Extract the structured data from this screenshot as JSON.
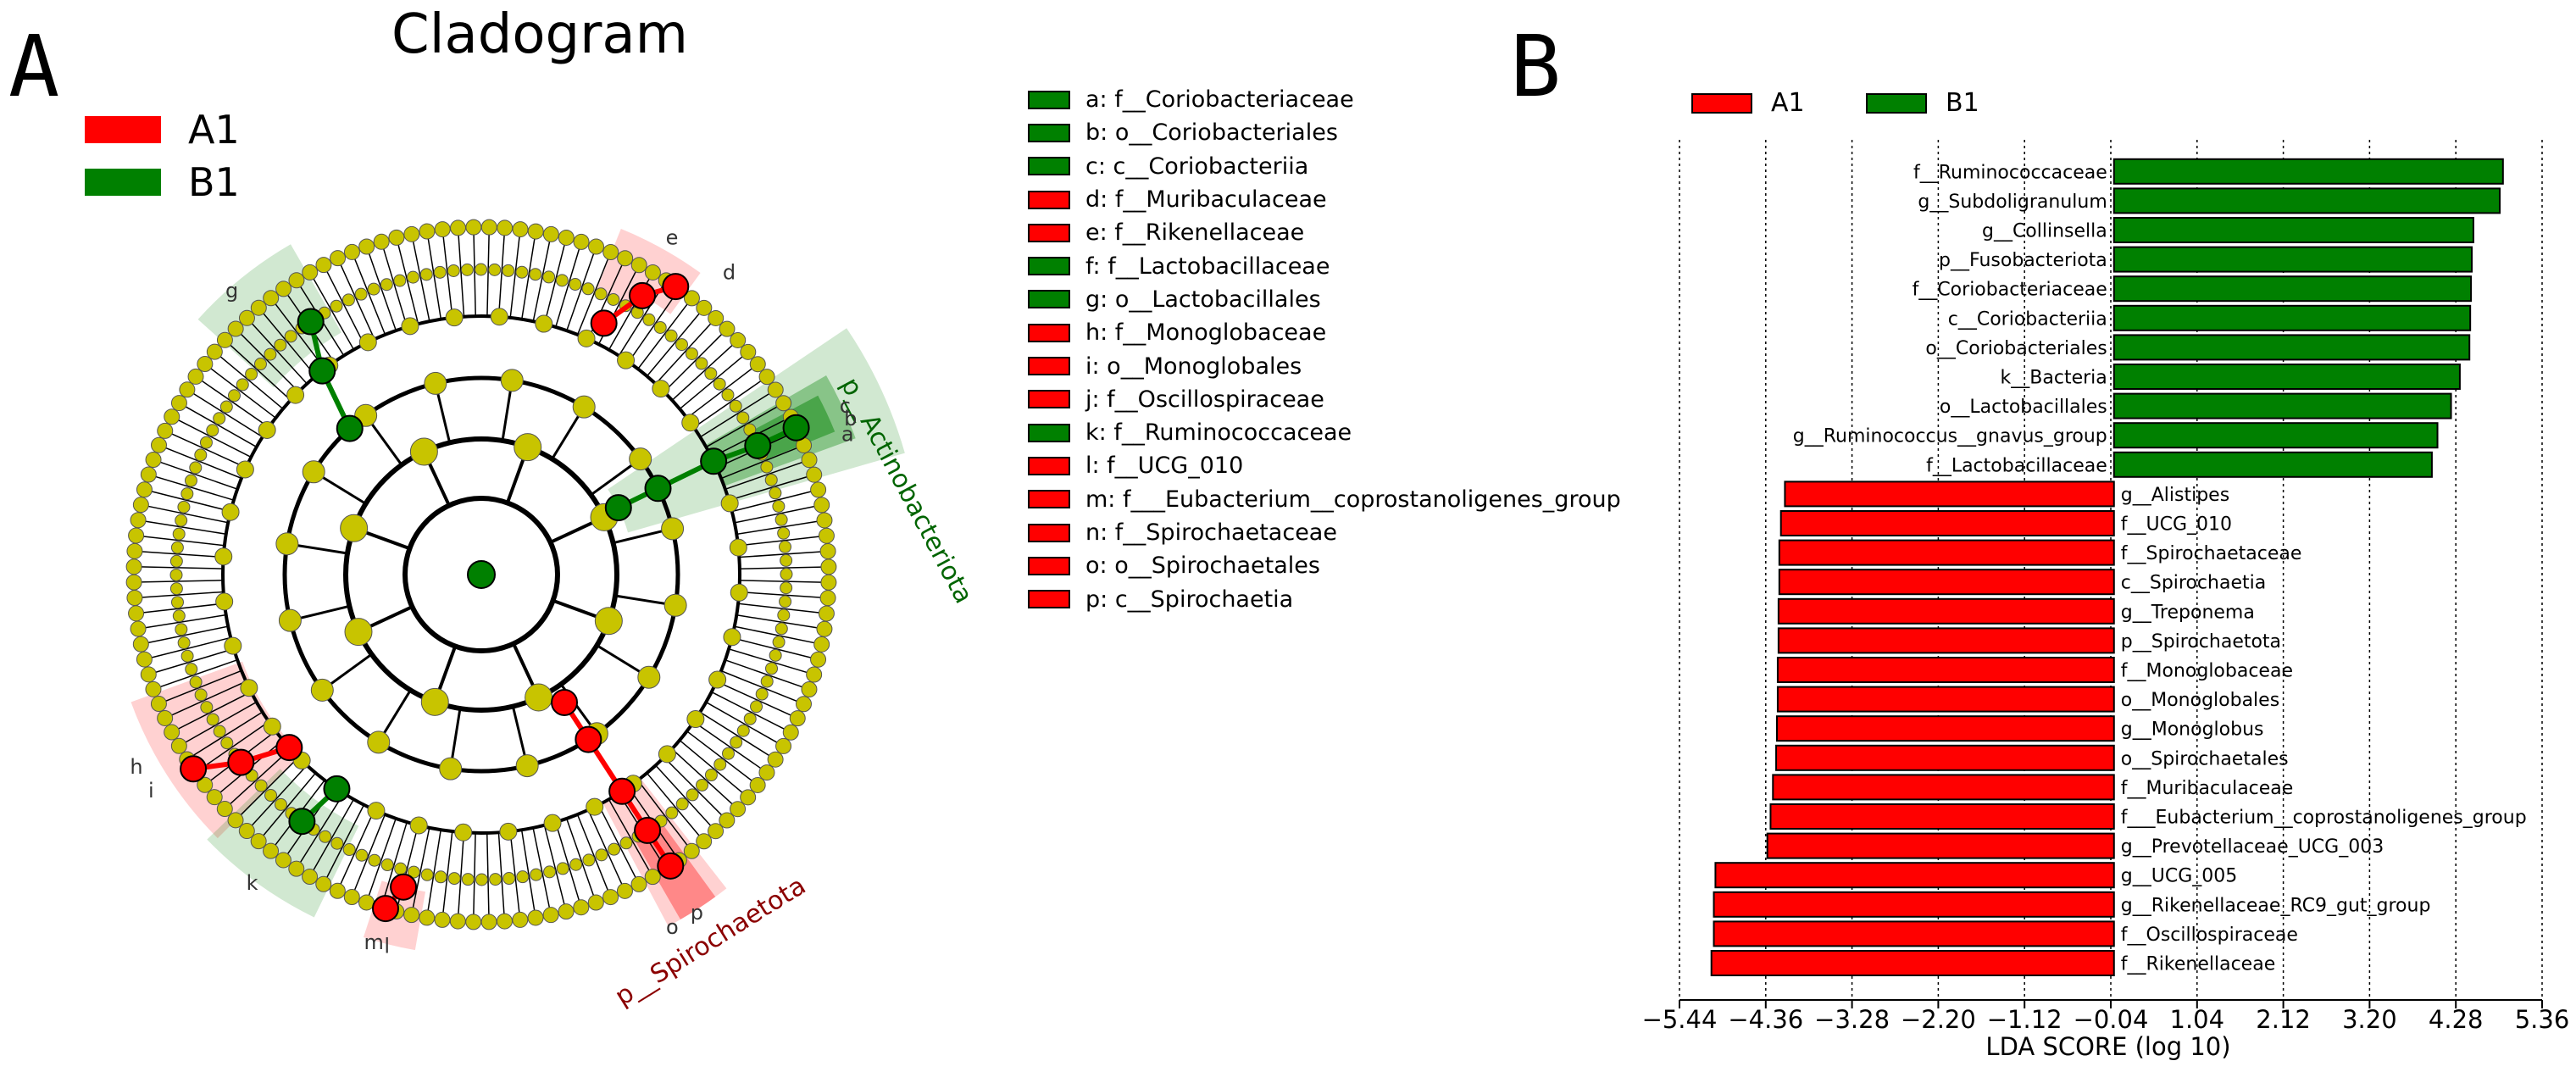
{
  "panel_a": {
    "letter": "A",
    "title": "Cladogram",
    "groups": [
      {
        "name": "A1",
        "color": "#ff0000"
      },
      {
        "name": "B1",
        "color": "#008000"
      }
    ],
    "node_color": "#c8c400",
    "highlight_labels": {
      "actino": "p__Actinobacteriota",
      "spiro": "p__Spirochaetota",
      "short": [
        "g",
        "e",
        "d",
        "c",
        "b",
        "a",
        "i",
        "h",
        "k",
        "m",
        "l",
        "p",
        "o"
      ]
    },
    "key": [
      {
        "text": "a: f__Coriobacteriaceae",
        "group": "B1"
      },
      {
        "text": "b: o__Coriobacteriales",
        "group": "B1"
      },
      {
        "text": "c: c__Coriobacteriia",
        "group": "B1"
      },
      {
        "text": "d: f__Muribaculaceae",
        "group": "A1"
      },
      {
        "text": "e: f__Rikenellaceae",
        "group": "A1"
      },
      {
        "text": "f: f__Lactobacillaceae",
        "group": "B1"
      },
      {
        "text": "g: o__Lactobacillales",
        "group": "B1"
      },
      {
        "text": "h: f__Monoglobaceae",
        "group": "A1"
      },
      {
        "text": "i: o__Monoglobales",
        "group": "A1"
      },
      {
        "text": "j: f__Oscillospiraceae",
        "group": "A1"
      },
      {
        "text": "k: f__Ruminococcaceae",
        "group": "B1"
      },
      {
        "text": "l: f__UCG_010",
        "group": "A1"
      },
      {
        "text": "m: f___Eubacterium__coprostanoligenes_group",
        "group": "A1"
      },
      {
        "text": "n: f__Spirochaetaceae",
        "group": "A1"
      },
      {
        "text": "o: o__Spirochaetales",
        "group": "A1"
      },
      {
        "text": "p: c__Spirochaetia",
        "group": "A1"
      }
    ]
  },
  "panel_b": {
    "letter": "B"
  },
  "chart_data": {
    "type": "bar",
    "orientation": "horizontal",
    "xlabel": "LDA SCORE (log 10)",
    "xlim": [
      -5.44,
      5.36
    ],
    "xticks": [
      -5.44,
      -4.36,
      -3.28,
      -2.2,
      -1.12,
      -0.04,
      1.04,
      2.12,
      3.2,
      4.28,
      5.36
    ],
    "xtick_labels": [
      "−5.44",
      "−4.36",
      "−3.28",
      "−2.20",
      "−1.12",
      "−0.04",
      "1.04",
      "2.12",
      "3.20",
      "4.28",
      "5.36"
    ],
    "grid": "vertical dotted",
    "legend": [
      {
        "name": "A1",
        "color": "#ff0000"
      },
      {
        "name": "B1",
        "color": "#008000"
      }
    ],
    "categories": [
      "f__Ruminococcaceae",
      "g__Subdoligranulum",
      "g__Collinsella",
      "p__Fusobacteriota",
      "f__Coriobacteriaceae",
      "c__Coriobacteriia",
      "o__Coriobacteriales",
      "k__Bacteria",
      "o__Lactobacillales",
      "g__Ruminococcus__gnavus_group",
      "f__Lactobacillaceae",
      "g__Alistipes",
      "f__UCG_010",
      "f__Spirochaetaceae",
      "c__Spirochaetia",
      "g__Treponema",
      "p__Spirochaetota",
      "f__Monoglobaceae",
      "o__Monoglobales",
      "g__Monoglobus",
      "o__Spirochaetales",
      "f__Muribaculaceae",
      "f___Eubacterium__coprostanoligenes_group",
      "g__Prevotellaceae_UCG_003",
      "g__UCG_005",
      "g__Rikenellaceae_RC9_gut_group",
      "f__Oscillospiraceae",
      "f__Rikenellaceae"
    ],
    "values": [
      4.87,
      4.83,
      4.5,
      4.48,
      4.47,
      4.46,
      4.45,
      4.33,
      4.22,
      4.05,
      3.98,
      -4.12,
      -4.17,
      -4.19,
      -4.19,
      -4.2,
      -4.2,
      -4.21,
      -4.21,
      -4.22,
      -4.23,
      -4.27,
      -4.3,
      -4.34,
      -4.99,
      -5.01,
      -5.01,
      -5.04
    ],
    "groups": [
      "B1",
      "B1",
      "B1",
      "B1",
      "B1",
      "B1",
      "B1",
      "B1",
      "B1",
      "B1",
      "B1",
      "A1",
      "A1",
      "A1",
      "A1",
      "A1",
      "A1",
      "A1",
      "A1",
      "A1",
      "A1",
      "A1",
      "A1",
      "A1",
      "A1",
      "A1",
      "A1",
      "A1"
    ]
  }
}
